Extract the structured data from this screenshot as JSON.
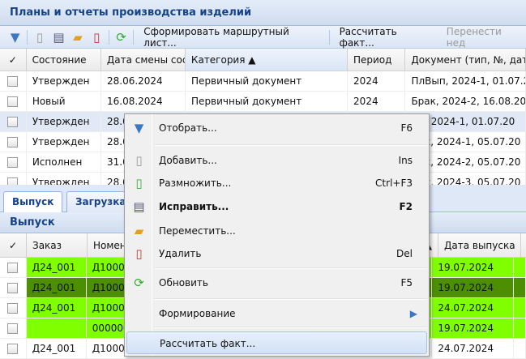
{
  "top_panel": {
    "title": "Планы и отчеты производства изделий",
    "toolbar": {
      "icons": [
        "filter-icon",
        "add-icon",
        "copy-icon",
        "move-icon",
        "delete-icon",
        "refresh-icon"
      ],
      "buttons": [
        "Сформировать маршрутный лист...",
        "Рассчитать факт...",
        "Перенести нед"
      ]
    },
    "columns": [
      "✓",
      "Состояние",
      "Дата смены сост",
      "Категория ▲",
      "Период",
      "Документ (тип, №, дат"
    ],
    "rows": [
      [
        "Утвержден",
        "28.06.2024",
        "Первичный документ",
        "2024",
        "ПлВып, 2024-1, 01.07.2"
      ],
      [
        "Новый",
        "16.08.2024",
        "Первичный документ",
        "2024",
        "Брак, 2024-2, 16.08.202"
      ],
      [
        "Утвержден",
        "28.0",
        "",
        "",
        "Пр, 2024-1, 01.07.20"
      ],
      [
        "Утвержден",
        "28.0",
        "",
        "",
        "Цех, 2024-1, 05.07.20"
      ],
      [
        "Исполнен",
        "31.0",
        "",
        "",
        "Цех, 2024-2, 05.07.20"
      ],
      [
        "Утвержден",
        "28.0",
        "",
        "",
        "Цех, 2024-3, 05.07.20"
      ]
    ]
  },
  "tabs": [
    "Выпуск",
    "Загрузка"
  ],
  "bottom_panel": {
    "title": "Выпуск",
    "columns": [
      "✓",
      "Заказ",
      "Номен",
      "а ▲",
      "Дата выпуска"
    ],
    "rows": [
      [
        "Д24_001",
        "Д1000",
        "19.07.2024"
      ],
      [
        "Д24_001",
        "Д1000",
        "19.07.2024"
      ],
      [
        "Д24_001",
        "Д1000",
        "24.07.2024"
      ],
      [
        "",
        "000000",
        "19.07.2024"
      ],
      [
        "Д24_001",
        "Д1000",
        "24.07.2024"
      ]
    ]
  },
  "context_menu": {
    "items": [
      {
        "label": "Отобрать...",
        "shortcut": "F6",
        "icon": "filter-icon"
      },
      {
        "label": "Добавить...",
        "shortcut": "Ins",
        "icon": "add-icon"
      },
      {
        "label": "Размножить...",
        "shortcut": "Ctrl+F3",
        "icon": "copy-icon"
      },
      {
        "label": "Исправить...",
        "shortcut": "F2",
        "icon": "edit-icon"
      },
      {
        "label": "Переместить...",
        "shortcut": "",
        "icon": "move-icon"
      },
      {
        "label": "Удалить",
        "shortcut": "Del",
        "icon": "delete-icon"
      },
      {
        "label": "Обновить",
        "shortcut": "F5",
        "icon": "refresh-icon"
      },
      {
        "label": "Формирование",
        "shortcut": "",
        "icon": ""
      },
      {
        "label": "Рассчитать факт...",
        "shortcut": "",
        "icon": ""
      }
    ]
  },
  "colors": {
    "row_green": "#80ff00",
    "row_dark_green": "#4c8f00",
    "header_text": "#15428b"
  }
}
